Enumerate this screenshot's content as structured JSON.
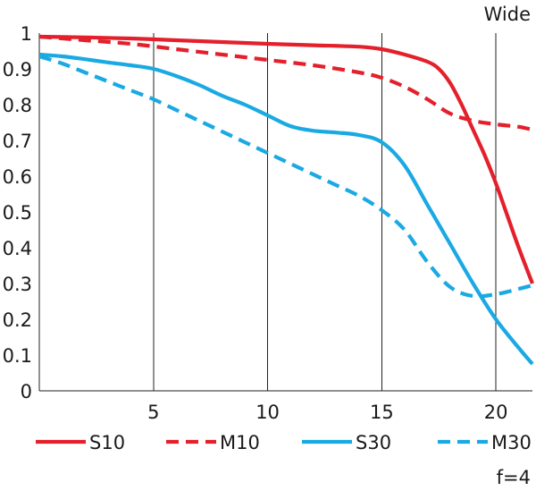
{
  "chart_data": {
    "type": "line",
    "title": "Wide",
    "note": "f=4",
    "xlabel": "",
    "ylabel": "",
    "xlim": [
      0,
      21.6
    ],
    "ylim": [
      0,
      1
    ],
    "xticks": [
      5,
      10,
      15,
      20
    ],
    "xtick_labels": [
      "5",
      "10",
      "15",
      "20"
    ],
    "yticks": [
      0,
      0.1,
      0.2,
      0.3,
      0.4,
      0.5,
      0.6,
      0.7,
      0.8,
      0.9,
      1
    ],
    "ytick_labels": [
      "0",
      "0.1",
      "0.2",
      "0.3",
      "0.4",
      "0.5",
      "0.6",
      "0.7",
      "0.8",
      "0.9",
      "1"
    ],
    "grid": "vertical",
    "series": [
      {
        "name": "S10",
        "color": "#e3202b",
        "style": "solid",
        "x": [
          0,
          2,
          4,
          6,
          8,
          10,
          12,
          14,
          15,
          16,
          17,
          17.5,
          18,
          18.5,
          19,
          19.5,
          20,
          20.5,
          21,
          21.6
        ],
        "y": [
          0.99,
          0.988,
          0.985,
          0.98,
          0.975,
          0.97,
          0.966,
          0.962,
          0.955,
          0.94,
          0.92,
          0.9,
          0.86,
          0.8,
          0.73,
          0.66,
          0.58,
          0.49,
          0.4,
          0.3
        ]
      },
      {
        "name": "M10",
        "color": "#e3202b",
        "style": "dashed",
        "x": [
          0,
          2,
          4,
          6,
          8,
          10,
          12,
          14,
          15,
          16,
          17,
          18,
          19,
          20,
          21,
          21.6
        ],
        "y": [
          0.99,
          0.98,
          0.97,
          0.955,
          0.94,
          0.925,
          0.91,
          0.89,
          0.875,
          0.85,
          0.815,
          0.775,
          0.755,
          0.745,
          0.738,
          0.73
        ]
      },
      {
        "name": "S30",
        "color": "#1aa9e3",
        "style": "solid",
        "x": [
          0,
          1,
          2,
          3,
          4,
          5,
          6,
          7,
          8,
          9,
          10,
          11,
          12,
          13,
          14,
          15,
          16,
          17,
          18,
          19,
          20,
          21,
          21.6
        ],
        "y": [
          0.94,
          0.935,
          0.927,
          0.918,
          0.91,
          0.9,
          0.88,
          0.855,
          0.825,
          0.8,
          0.77,
          0.74,
          0.727,
          0.722,
          0.715,
          0.695,
          0.63,
          0.52,
          0.41,
          0.3,
          0.2,
          0.12,
          0.075
        ]
      },
      {
        "name": "M30",
        "color": "#1aa9e3",
        "style": "dashed",
        "x": [
          0,
          1,
          2,
          3,
          4,
          5,
          6,
          7,
          8,
          9,
          10,
          11,
          12,
          13,
          14,
          15,
          16,
          17,
          18,
          19,
          20,
          21,
          21.6
        ],
        "y": [
          0.935,
          0.915,
          0.89,
          0.865,
          0.84,
          0.815,
          0.785,
          0.755,
          0.725,
          0.695,
          0.665,
          0.635,
          0.605,
          0.575,
          0.545,
          0.505,
          0.45,
          0.36,
          0.29,
          0.265,
          0.27,
          0.285,
          0.295
        ]
      }
    ],
    "legend": [
      "S10",
      "M10",
      "S30",
      "M30"
    ]
  }
}
